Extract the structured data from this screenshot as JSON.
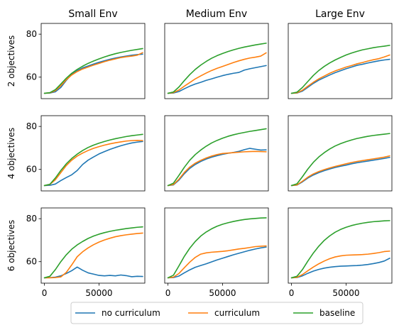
{
  "chart_data": {
    "type": "line",
    "layout": "3x3 grid, shared x and y axes",
    "columns": [
      "Small Env",
      "Medium Env",
      "Large Env"
    ],
    "rows": [
      "2 objectives",
      "4 objectives",
      "6 objectives"
    ],
    "xlim": [
      -3000,
      92000
    ],
    "ylim": [
      50,
      85
    ],
    "xticks": [
      0,
      50000
    ],
    "yticks": [
      60,
      80
    ],
    "legend": {
      "placement": "bottom-center",
      "columns": 3
    },
    "series_names": [
      "no curriculum",
      "curriculum",
      "baseline"
    ],
    "colors": {
      "no curriculum": "#1f77b4",
      "curriculum": "#ff7f0e",
      "baseline": "#2ca02c"
    },
    "x": [
      0,
      5000,
      10000,
      15000,
      20000,
      25000,
      30000,
      35000,
      40000,
      45000,
      50000,
      55000,
      60000,
      65000,
      70000,
      75000,
      80000,
      85000,
      90000
    ],
    "panels": [
      {
        "row": "2 objectives",
        "col": "Small Env",
        "series": [
          {
            "name": "no curriculum",
            "values": [
              52.5,
              52.6,
              53.2,
              55.2,
              58.5,
              61.3,
              63.0,
              64.3,
              65.2,
              66.1,
              66.9,
              67.6,
              68.3,
              68.9,
              69.4,
              69.8,
              70.2,
              70.5,
              70.7
            ]
          },
          {
            "name": "curriculum",
            "values": [
              52.5,
              52.7,
              53.7,
              56.0,
              58.8,
              61.0,
              62.6,
              63.8,
              64.7,
              65.6,
              66.4,
              67.2,
              67.9,
              68.5,
              69.1,
              69.5,
              69.8,
              70.2,
              71.4
            ]
          },
          {
            "name": "baseline",
            "values": [
              52.5,
              52.8,
              54.2,
              56.8,
              59.5,
              61.8,
              63.6,
              65.1,
              66.4,
              67.5,
              68.5,
              69.4,
              70.2,
              70.9,
              71.5,
              72.0,
              72.5,
              72.9,
              73.3
            ]
          }
        ]
      },
      {
        "row": "2 objectives",
        "col": "Medium Env",
        "series": [
          {
            "name": "no curriculum",
            "values": [
              52.5,
              52.6,
              53.3,
              54.6,
              55.8,
              56.8,
              57.6,
              58.5,
              59.2,
              60.0,
              60.7,
              61.3,
              61.8,
              62.2,
              63.3,
              63.9,
              64.4,
              64.9,
              65.4
            ]
          },
          {
            "name": "curriculum",
            "values": [
              52.5,
              52.8,
              54.0,
              55.8,
              57.5,
              59.2,
              60.6,
              61.9,
              63.1,
              64.1,
              65.0,
              65.9,
              66.8,
              67.6,
              68.3,
              68.9,
              69.3,
              69.8,
              71.3
            ]
          },
          {
            "name": "baseline",
            "values": [
              52.5,
              53.1,
              55.4,
              58.4,
              61.2,
              63.6,
              65.6,
              67.3,
              68.8,
              70.0,
              71.0,
              71.9,
              72.7,
              73.4,
              74.0,
              74.5,
              75.0,
              75.4,
              75.8
            ]
          }
        ]
      },
      {
        "row": "2 objectives",
        "col": "Large Env",
        "series": [
          {
            "name": "no curriculum",
            "values": [
              52.5,
              52.6,
              53.5,
              55.3,
              57.1,
              58.6,
              59.8,
              61.0,
              62.1,
              63.0,
              63.9,
              64.7,
              65.5,
              66.0,
              66.6,
              67.1,
              67.6,
              68.0,
              68.3
            ]
          },
          {
            "name": "curriculum",
            "values": [
              52.5,
              52.7,
              53.9,
              55.8,
              57.6,
              59.2,
              60.5,
              61.8,
              62.9,
              63.8,
              64.7,
              65.4,
              66.2,
              66.8,
              67.5,
              68.1,
              68.6,
              69.4,
              70.3
            ]
          },
          {
            "name": "baseline",
            "values": [
              52.5,
              53.0,
              55.2,
              58.0,
              60.8,
              63.1,
              65.0,
              66.6,
              68.0,
              69.2,
              70.3,
              71.2,
              72.0,
              72.7,
              73.2,
              73.7,
              74.1,
              74.4,
              74.8
            ]
          }
        ]
      },
      {
        "row": "4 objectives",
        "col": "Small Env",
        "series": [
          {
            "name": "no curriculum",
            "values": [
              52.5,
              52.6,
              53.2,
              54.8,
              56.2,
              57.5,
              59.5,
              62.3,
              64.3,
              65.8,
              67.2,
              68.3,
              69.3,
              70.2,
              71.0,
              71.7,
              72.3,
              72.7,
              73.0
            ]
          },
          {
            "name": "curriculum",
            "values": [
              52.5,
              53.0,
              55.2,
              58.5,
              61.8,
              64.3,
              66.2,
              67.6,
              68.8,
              69.8,
              70.6,
              71.3,
              71.9,
              72.4,
              72.8,
              73.2,
              73.4,
              73.5,
              73.4
            ]
          },
          {
            "name": "baseline",
            "values": [
              52.5,
              53.1,
              56.0,
              59.5,
              62.6,
              65.1,
              67.1,
              68.8,
              70.2,
              71.3,
              72.2,
              73.0,
              73.7,
              74.3,
              74.8,
              75.3,
              75.7,
              76.0,
              76.3
            ]
          }
        ]
      },
      {
        "row": "4 objectives",
        "col": "Medium Env",
        "series": [
          {
            "name": "no curriculum",
            "values": [
              52.5,
              52.8,
              55.0,
              58.0,
              60.5,
              62.3,
              63.7,
              64.8,
              65.7,
              66.4,
              67.0,
              67.5,
              67.9,
              68.4,
              69.2,
              69.8,
              69.4,
              69.0,
              69.1
            ]
          },
          {
            "name": "curriculum",
            "values": [
              52.5,
              53.0,
              55.4,
              58.6,
              61.1,
              62.9,
              64.2,
              65.3,
              66.2,
              66.9,
              67.4,
              67.6,
              67.8,
              68.0,
              68.2,
              68.3,
              68.4,
              68.3,
              68.2
            ]
          },
          {
            "name": "baseline",
            "values": [
              52.5,
              53.6,
              57.2,
              61.0,
              64.3,
              66.9,
              69.0,
              70.8,
              72.3,
              73.5,
              74.5,
              75.4,
              76.1,
              76.7,
              77.2,
              77.7,
              78.1,
              78.5,
              78.9
            ]
          }
        ]
      },
      {
        "row": "4 objectives",
        "col": "Large Env",
        "series": [
          {
            "name": "no curriculum",
            "values": [
              52.5,
              52.7,
              54.2,
              56.0,
              57.4,
              58.5,
              59.4,
              60.2,
              60.9,
              61.5,
              62.0,
              62.6,
              63.1,
              63.5,
              63.9,
              64.3,
              64.7,
              65.1,
              65.6
            ]
          },
          {
            "name": "curriculum",
            "values": [
              52.5,
              52.8,
              54.5,
              56.4,
              57.9,
              59.0,
              59.9,
              60.7,
              61.4,
              62.0,
              62.6,
              63.2,
              63.7,
              64.1,
              64.5,
              64.9,
              65.3,
              65.7,
              66.3
            ]
          },
          {
            "name": "baseline",
            "values": [
              52.5,
              53.3,
              56.6,
              60.2,
              63.3,
              65.8,
              67.8,
              69.5,
              70.9,
              72.0,
              72.9,
              73.7,
              74.4,
              74.9,
              75.4,
              75.8,
              76.1,
              76.4,
              76.7
            ]
          }
        ]
      },
      {
        "row": "6 objectives",
        "col": "Small Env",
        "series": [
          {
            "name": "no curriculum",
            "values": [
              52.5,
              52.6,
              52.8,
              53.4,
              54.5,
              55.8,
              57.5,
              56.0,
              54.8,
              54.2,
              53.6,
              53.4,
              53.6,
              53.4,
              53.8,
              53.5,
              53.0,
              53.2,
              53.1
            ]
          },
          {
            "name": "curriculum",
            "values": [
              52.5,
              52.5,
              52.6,
              52.9,
              55.0,
              58.5,
              62.3,
              64.6,
              66.4,
              67.9,
              69.1,
              70.1,
              70.9,
              71.6,
              72.1,
              72.5,
              72.8,
              73.1,
              73.3
            ]
          },
          {
            "name": "baseline",
            "values": [
              52.5,
              53.2,
              56.3,
              60.0,
              63.2,
              65.8,
              67.8,
              69.4,
              70.8,
              71.9,
              72.8,
              73.5,
              74.1,
              74.6,
              75.0,
              75.4,
              75.7,
              76.0,
              76.2
            ]
          }
        ]
      },
      {
        "row": "6 objectives",
        "col": "Medium Env",
        "series": [
          {
            "name": "no curriculum",
            "values": [
              52.5,
              52.6,
              53.3,
              54.8,
              56.2,
              57.4,
              58.2,
              59.0,
              59.9,
              60.8,
              61.6,
              62.4,
              63.2,
              63.9,
              64.6,
              65.3,
              65.9,
              66.4,
              66.8
            ]
          },
          {
            "name": "curriculum",
            "values": [
              52.5,
              52.8,
              54.5,
              57.2,
              59.8,
              62.0,
              63.5,
              64.1,
              64.4,
              64.6,
              64.8,
              65.1,
              65.5,
              65.9,
              66.2,
              66.6,
              67.0,
              67.2,
              67.3
            ]
          },
          {
            "name": "baseline",
            "values": [
              52.5,
              53.7,
              58.0,
              62.5,
              66.3,
              69.4,
              71.9,
              73.8,
              75.3,
              76.5,
              77.4,
              78.1,
              78.7,
              79.2,
              79.6,
              79.9,
              80.1,
              80.3,
              80.4
            ]
          }
        ]
      },
      {
        "row": "6 objectives",
        "col": "Large Env",
        "series": [
          {
            "name": "no curriculum",
            "values": [
              52.5,
              52.6,
              53.4,
              54.6,
              55.6,
              56.4,
              57.0,
              57.4,
              57.7,
              57.9,
              58.0,
              58.1,
              58.2,
              58.4,
              58.7,
              59.1,
              59.6,
              60.3,
              61.6
            ]
          },
          {
            "name": "curriculum",
            "values": [
              52.5,
              52.7,
              54.0,
              55.8,
              57.5,
              59.0,
              60.3,
              61.4,
              62.2,
              62.7,
              63.0,
              63.1,
              63.2,
              63.3,
              63.5,
              63.8,
              64.2,
              64.7,
              64.9
            ]
          },
          {
            "name": "baseline",
            "values": [
              52.5,
              53.2,
              56.3,
              60.3,
              64.0,
              67.2,
              69.9,
              72.0,
              73.7,
              75.0,
              76.0,
              76.8,
              77.4,
              77.9,
              78.3,
              78.6,
              78.8,
              79.0,
              79.1
            ]
          }
        ]
      }
    ]
  }
}
